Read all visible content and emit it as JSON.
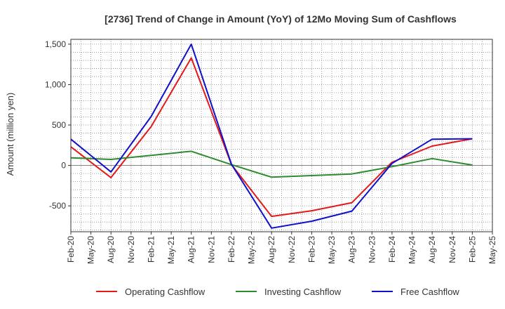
{
  "chart_data": {
    "type": "line",
    "title": "[2736]  Trend of Change in Amount (YoY) of 12Mo Moving Sum of Cashflows",
    "xlabel": "",
    "ylabel": "Amount (million yen)",
    "ylim": [
      -820,
      1560
    ],
    "yticks": [
      1500,
      1000,
      500,
      0,
      -500
    ],
    "ytick_labels": [
      "1,500",
      "1,000",
      "500",
      "0",
      "-500"
    ],
    "categories": [
      "Feb-20",
      "May-20",
      "Aug-20",
      "Nov-20",
      "Feb-21",
      "May-21",
      "Aug-21",
      "Nov-21",
      "Feb-22",
      "May-22",
      "Aug-22",
      "Nov-22",
      "Feb-23",
      "May-23",
      "Aug-23",
      "Nov-23",
      "Feb-24",
      "May-24",
      "Aug-24",
      "Nov-24",
      "Feb-25",
      "May-25"
    ],
    "grid": true,
    "legend_position": "bottom",
    "series": [
      {
        "name": "Operating Cashflow",
        "color": "#e31a1c",
        "values": [
          230,
          null,
          -150,
          null,
          480,
          null,
          1330,
          null,
          10,
          null,
          -630,
          null,
          -560,
          null,
          -460,
          null,
          40,
          null,
          240,
          null,
          330,
          null
        ]
      },
      {
        "name": "Investing Cashflow",
        "color": "#2e8b2e",
        "values": [
          95,
          null,
          75,
          null,
          125,
          null,
          175,
          null,
          10,
          null,
          -145,
          null,
          -125,
          null,
          -105,
          null,
          -15,
          null,
          85,
          null,
          5,
          null
        ]
      },
      {
        "name": "Free Cashflow",
        "color": "#1010cc",
        "values": [
          325,
          null,
          -80,
          null,
          605,
          null,
          1500,
          null,
          15,
          null,
          -775,
          null,
          -690,
          null,
          -565,
          null,
          25,
          null,
          325,
          null,
          330,
          null
        ]
      }
    ]
  }
}
